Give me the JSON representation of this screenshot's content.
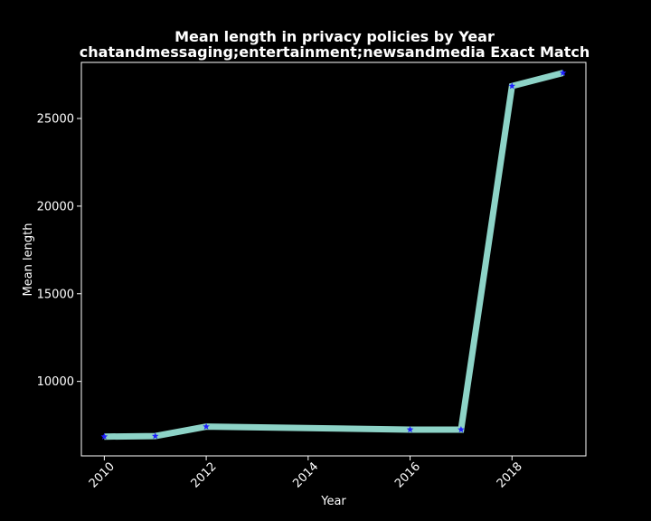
{
  "chart_data": {
    "type": "line",
    "title": "Mean length in privacy policies by Year",
    "subtitle": "chatandmessaging;entertainment;newsandmedia Exact Match",
    "xlabel": "Year",
    "ylabel": "Mean length",
    "x": [
      2010,
      2011,
      2012,
      2016,
      2017,
      2018,
      2019
    ],
    "y": [
      6850,
      6880,
      7420,
      7250,
      7250,
      26850,
      27600
    ],
    "xlim": [
      2009.55,
      2019.45
    ],
    "ylim": [
      5750,
      28200
    ],
    "xticks": [
      "2010",
      "2012",
      "2014",
      "2016",
      "2018"
    ],
    "yticks": [
      "10000",
      "15000",
      "20000",
      "25000"
    ],
    "grid": false,
    "colors": {
      "background": "#000000",
      "line": "#8dd3c7",
      "marker": "#1f1fff",
      "text": "#ffffff"
    }
  }
}
